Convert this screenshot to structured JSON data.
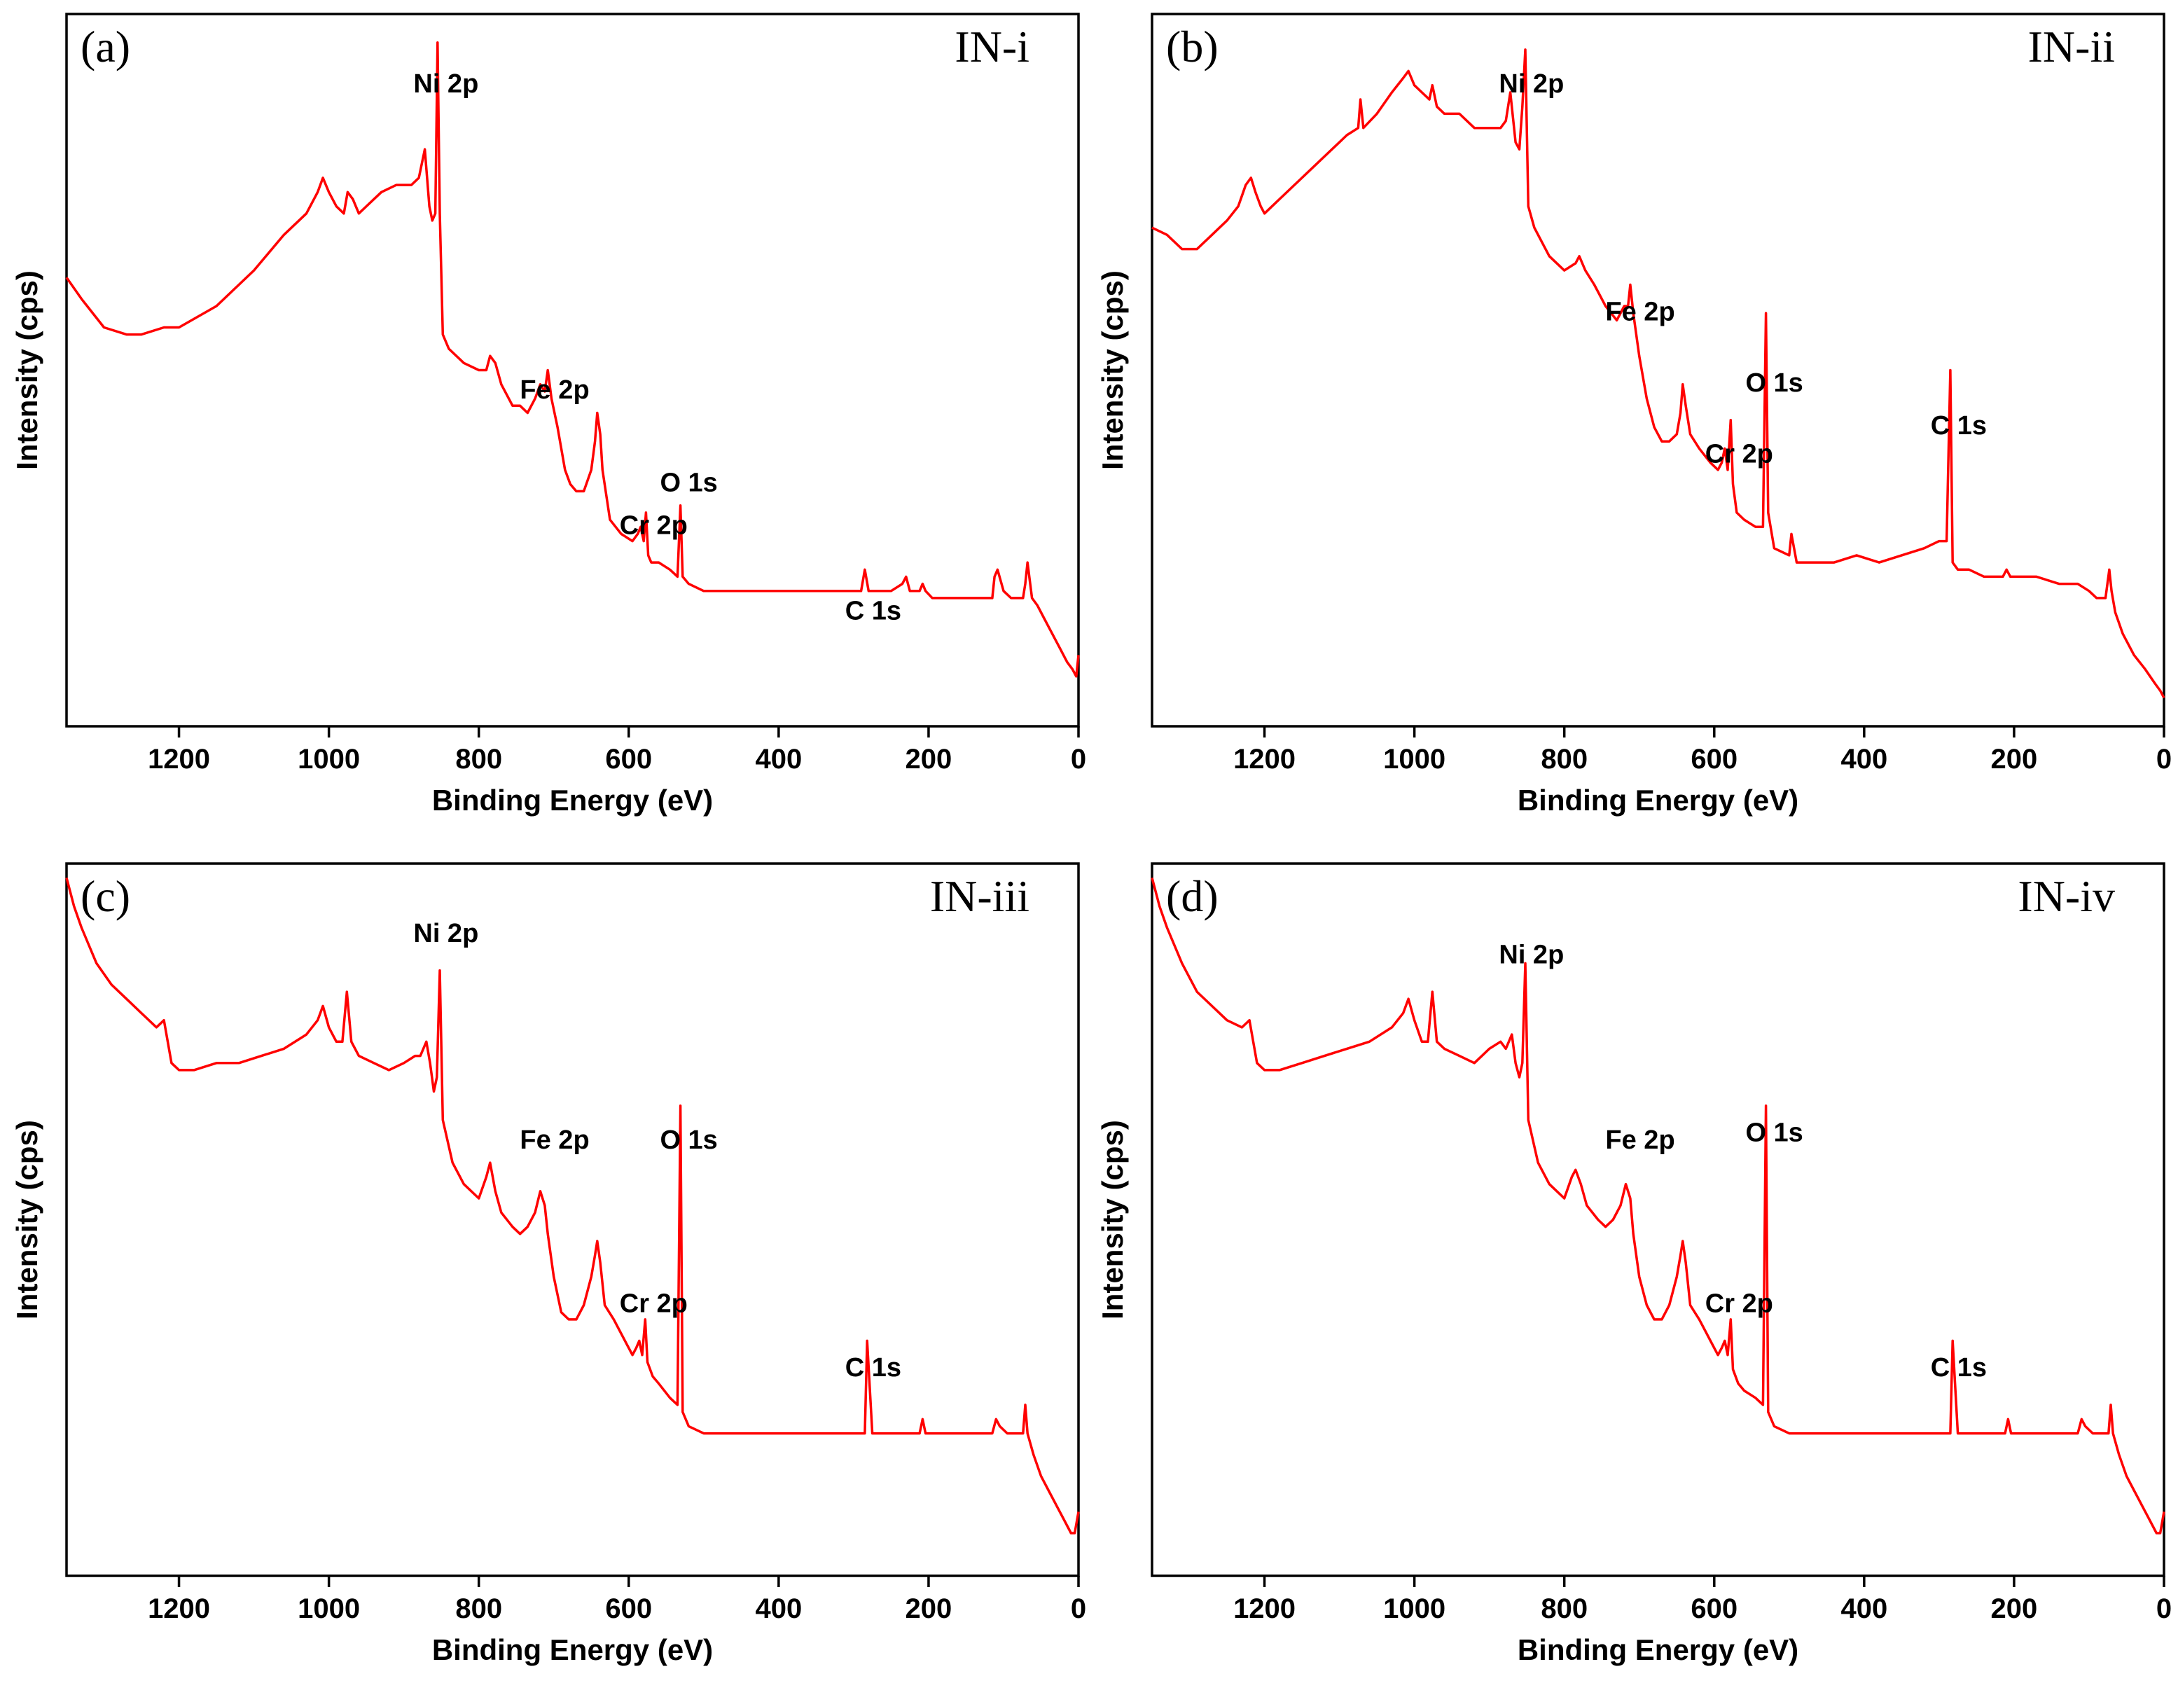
{
  "chart_data": [
    {
      "type": "line",
      "panel": "(a)",
      "sample": "IN-i",
      "xlabel": "Binding Energy (eV)",
      "ylabel": "Intensity (cps)",
      "xlim": [
        1350,
        0
      ],
      "xticks": [
        1200,
        1000,
        800,
        600,
        400,
        200,
        0
      ],
      "ylim": [
        0,
        100
      ],
      "peak_labels": [
        {
          "text": "Ni 2p",
          "energy": 855,
          "level": 89
        },
        {
          "text": "Fe 2p",
          "energy": 710,
          "level": 46
        },
        {
          "text": "Cr 2p",
          "energy": 578,
          "level": 27
        },
        {
          "text": "O 1s",
          "energy": 531,
          "level": 33
        },
        {
          "text": "C 1s",
          "energy": 285,
          "level": 15
        }
      ],
      "series": [
        {
          "name": "IN-i",
          "x": [
            1350,
            1330,
            1300,
            1270,
            1250,
            1220,
            1200,
            1150,
            1100,
            1060,
            1030,
            1015,
            1008,
            1000,
            990,
            980,
            975,
            968,
            960,
            950,
            930,
            910,
            890,
            880,
            872,
            866,
            862,
            858,
            855,
            852,
            848,
            840,
            820,
            800,
            790,
            785,
            778,
            770,
            755,
            745,
            735,
            725,
            718,
            712,
            708,
            703,
            695,
            685,
            678,
            670,
            660,
            650,
            645,
            642,
            638,
            635,
            625,
            610,
            595,
            588,
            584,
            580,
            577,
            574,
            570,
            560,
            545,
            535,
            531,
            528,
            520,
            500,
            460,
            400,
            360,
            330,
            300,
            290,
            285,
            280,
            270,
            250,
            235,
            230,
            225,
            212,
            208,
            204,
            195,
            170,
            140,
            125,
            115,
            112,
            108,
            100,
            90,
            80,
            74,
            71,
            68,
            62,
            55,
            45,
            35,
            25,
            15,
            8,
            3,
            0
          ],
          "y": [
            63,
            60,
            56,
            55,
            55,
            56,
            56,
            59,
            64,
            69,
            72,
            75,
            77,
            75,
            73,
            72,
            75,
            74,
            72,
            73,
            75,
            76,
            76,
            77,
            81,
            73,
            71,
            72,
            96,
            72,
            55,
            53,
            51,
            50,
            50,
            52,
            51,
            48,
            45,
            45,
            44,
            46,
            48,
            47,
            50,
            46,
            42,
            36,
            34,
            33,
            33,
            36,
            40,
            44,
            41,
            36,
            29,
            27,
            26,
            27,
            28,
            26,
            30,
            24,
            23,
            23,
            22,
            21,
            31,
            21,
            20,
            19,
            19,
            19,
            19,
            19,
            19,
            19,
            22,
            19,
            19,
            19,
            20,
            21,
            19,
            19,
            20,
            19,
            18,
            18,
            18,
            18,
            18,
            21,
            22,
            19,
            18,
            18,
            18,
            20,
            23,
            18,
            17,
            15,
            13,
            11,
            9,
            8,
            7,
            10
          ]
        }
      ]
    },
    {
      "type": "line",
      "panel": "(b)",
      "sample": "IN-ii",
      "xlabel": "Binding Energy (eV)",
      "ylabel": "Intensity (cps)",
      "xlim": [
        1350,
        0
      ],
      "xticks": [
        1200,
        1000,
        800,
        600,
        400,
        200,
        0
      ],
      "ylim": [
        0,
        100
      ],
      "peak_labels": [
        {
          "text": "Ni 2p",
          "energy": 855,
          "level": 89
        },
        {
          "text": "Fe 2p",
          "energy": 710,
          "level": 57
        },
        {
          "text": "O 1s",
          "energy": 531,
          "level": 47
        },
        {
          "text": "Cr 2p",
          "energy": 578,
          "level": 37
        },
        {
          "text": "C 1s",
          "energy": 285,
          "level": 41
        }
      ],
      "series": [
        {
          "name": "IN-ii",
          "x": [
            1350,
            1330,
            1310,
            1290,
            1270,
            1250,
            1235,
            1225,
            1218,
            1212,
            1205,
            1200,
            1180,
            1150,
            1120,
            1090,
            1075,
            1072,
            1068,
            1050,
            1030,
            1015,
            1008,
            1000,
            990,
            980,
            976,
            970,
            960,
            940,
            920,
            900,
            885,
            878,
            872,
            865,
            860,
            856,
            852,
            848,
            840,
            830,
            820,
            800,
            785,
            780,
            772,
            760,
            745,
            730,
            720,
            715,
            712,
            708,
            700,
            690,
            680,
            670,
            660,
            650,
            645,
            642,
            638,
            632,
            620,
            605,
            595,
            590,
            586,
            582,
            578,
            575,
            570,
            560,
            545,
            535,
            531,
            528,
            520,
            500,
            497,
            490,
            470,
            440,
            410,
            380,
            350,
            320,
            300,
            290,
            285,
            282,
            275,
            260,
            240,
            215,
            210,
            205,
            195,
            170,
            140,
            125,
            115,
            100,
            90,
            78,
            73,
            70,
            65,
            55,
            40,
            25,
            12,
            5,
            0
          ],
          "y": [
            70,
            69,
            67,
            67,
            69,
            71,
            73,
            76,
            77,
            75,
            73,
            72,
            74,
            77,
            80,
            83,
            84,
            88,
            84,
            86,
            89,
            91,
            92,
            90,
            89,
            88,
            90,
            87,
            86,
            86,
            84,
            84,
            84,
            85,
            89,
            82,
            81,
            87,
            95,
            73,
            70,
            68,
            66,
            64,
            65,
            66,
            64,
            62,
            59,
            57,
            59,
            59,
            62,
            58,
            52,
            46,
            42,
            40,
            40,
            41,
            44,
            48,
            45,
            41,
            39,
            37,
            36,
            37,
            39,
            36,
            43,
            34,
            30,
            29,
            28,
            28,
            58,
            30,
            25,
            24,
            27,
            23,
            23,
            23,
            24,
            23,
            24,
            25,
            26,
            26,
            50,
            23,
            22,
            22,
            21,
            21,
            22,
            21,
            21,
            21,
            20,
            20,
            20,
            19,
            18,
            18,
            22,
            19,
            16,
            13,
            10,
            8,
            6,
            5,
            4
          ]
        }
      ]
    },
    {
      "type": "line",
      "panel": "(c)",
      "sample": "IN-iii",
      "xlabel": "Binding Energy (eV)",
      "ylabel": "Intensity (cps)",
      "xlim": [
        1350,
        0
      ],
      "xticks": [
        1200,
        1000,
        800,
        600,
        400,
        200,
        0
      ],
      "ylim": [
        0,
        100
      ],
      "peak_labels": [
        {
          "text": "Ni 2p",
          "energy": 855,
          "level": 89
        },
        {
          "text": "Fe 2p",
          "energy": 710,
          "level": 60
        },
        {
          "text": "O 1s",
          "energy": 531,
          "level": 60
        },
        {
          "text": "Cr 2p",
          "energy": 578,
          "level": 37
        },
        {
          "text": "C 1s",
          "energy": 285,
          "level": 28
        }
      ],
      "series": [
        {
          "name": "IN-iii",
          "x": [
            1350,
            1340,
            1330,
            1310,
            1290,
            1270,
            1250,
            1230,
            1220,
            1210,
            1200,
            1180,
            1150,
            1120,
            1090,
            1060,
            1030,
            1015,
            1008,
            1000,
            990,
            982,
            976,
            970,
            960,
            940,
            920,
            900,
            885,
            878,
            870,
            865,
            860,
            856,
            852,
            848,
            835,
            820,
            800,
            790,
            785,
            778,
            770,
            755,
            745,
            735,
            725,
            718,
            712,
            708,
            700,
            690,
            680,
            670,
            660,
            650,
            645,
            642,
            638,
            632,
            620,
            605,
            595,
            590,
            586,
            582,
            578,
            575,
            568,
            560,
            545,
            535,
            531,
            528,
            520,
            500,
            450,
            400,
            350,
            300,
            290,
            285,
            282,
            275,
            250,
            212,
            208,
            204,
            190,
            160,
            130,
            115,
            110,
            105,
            95,
            82,
            74,
            71,
            68,
            60,
            50,
            40,
            30,
            20,
            10,
            5,
            0
          ],
          "y": [
            98,
            94,
            91,
            86,
            83,
            81,
            79,
            77,
            78,
            72,
            71,
            71,
            72,
            72,
            73,
            74,
            76,
            78,
            80,
            77,
            75,
            75,
            82,
            75,
            73,
            72,
            71,
            72,
            73,
            73,
            75,
            72,
            68,
            70,
            85,
            64,
            58,
            55,
            53,
            56,
            58,
            54,
            51,
            49,
            48,
            49,
            51,
            54,
            52,
            48,
            42,
            37,
            36,
            36,
            38,
            42,
            45,
            47,
            44,
            38,
            36,
            33,
            31,
            32,
            33,
            31,
            36,
            30,
            28,
            27,
            25,
            24,
            66,
            23,
            21,
            20,
            20,
            20,
            20,
            20,
            20,
            20,
            33,
            20,
            20,
            20,
            22,
            20,
            20,
            20,
            20,
            20,
            22,
            21,
            20,
            20,
            20,
            24,
            20,
            17,
            14,
            12,
            10,
            8,
            6,
            6,
            9
          ]
        }
      ]
    },
    {
      "type": "line",
      "panel": "(d)",
      "sample": "IN-iv",
      "xlabel": "Binding Energy (eV)",
      "ylabel": "Intensity (cps)",
      "xlim": [
        1350,
        0
      ],
      "xticks": [
        1200,
        1000,
        800,
        600,
        400,
        200,
        0
      ],
      "ylim": [
        0,
        100
      ],
      "peak_labels": [
        {
          "text": "Ni 2p",
          "energy": 855,
          "level": 86
        },
        {
          "text": "Fe 2p",
          "energy": 710,
          "level": 60
        },
        {
          "text": "O 1s",
          "energy": 531,
          "level": 61
        },
        {
          "text": "Cr 2p",
          "energy": 578,
          "level": 37
        },
        {
          "text": "C 1s",
          "energy": 285,
          "level": 28
        }
      ],
      "series": [
        {
          "name": "IN-iv",
          "x": [
            1350,
            1340,
            1330,
            1310,
            1290,
            1270,
            1250,
            1230,
            1220,
            1210,
            1200,
            1180,
            1150,
            1120,
            1090,
            1060,
            1030,
            1015,
            1008,
            1000,
            990,
            982,
            976,
            970,
            960,
            940,
            920,
            900,
            885,
            878,
            870,
            865,
            860,
            856,
            852,
            848,
            835,
            820,
            800,
            790,
            785,
            778,
            770,
            755,
            745,
            735,
            725,
            718,
            712,
            708,
            700,
            690,
            680,
            670,
            660,
            650,
            645,
            642,
            638,
            632,
            620,
            605,
            595,
            590,
            586,
            582,
            578,
            575,
            568,
            560,
            545,
            535,
            531,
            528,
            520,
            500,
            450,
            400,
            350,
            300,
            290,
            285,
            282,
            275,
            250,
            212,
            208,
            204,
            190,
            160,
            130,
            115,
            110,
            105,
            95,
            82,
            74,
            71,
            68,
            60,
            50,
            40,
            30,
            20,
            10,
            5,
            0
          ],
          "y": [
            98,
            94,
            91,
            86,
            82,
            80,
            78,
            77,
            78,
            72,
            71,
            71,
            72,
            73,
            74,
            75,
            77,
            79,
            81,
            78,
            75,
            75,
            82,
            75,
            74,
            73,
            72,
            74,
            75,
            74,
            76,
            72,
            70,
            72,
            86,
            64,
            58,
            55,
            53,
            56,
            57,
            55,
            52,
            50,
            49,
            50,
            52,
            55,
            53,
            48,
            42,
            38,
            36,
            36,
            38,
            42,
            45,
            47,
            44,
            38,
            36,
            33,
            31,
            32,
            33,
            31,
            36,
            29,
            27,
            26,
            25,
            24,
            66,
            23,
            21,
            20,
            20,
            20,
            20,
            20,
            20,
            20,
            33,
            20,
            20,
            20,
            22,
            20,
            20,
            20,
            20,
            20,
            22,
            21,
            20,
            20,
            20,
            24,
            20,
            17,
            14,
            12,
            10,
            8,
            6,
            6,
            9
          ]
        }
      ]
    }
  ]
}
